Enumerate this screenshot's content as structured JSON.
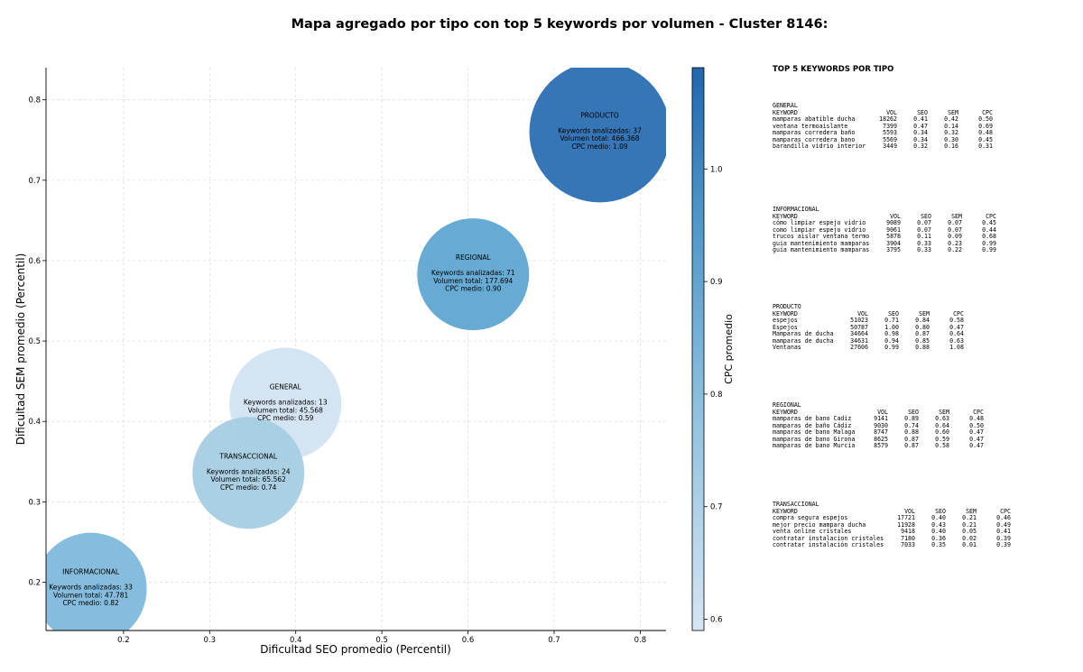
{
  "title": "Mapa agregado por tipo con top 5 keywords por volumen - Cluster 8146:",
  "chart_data": {
    "type": "scatter",
    "title": "Mapa agregado por tipo con top 5 keywords por volumen - Cluster 8146:",
    "xlabel": "Dificultad SEO promedio (Percentil)",
    "ylabel": "Dificultad SEM promedio (Percentil)",
    "xlim": [
      0.11,
      0.83
    ],
    "ylim": [
      0.14,
      0.84
    ],
    "xticks": [
      0.2,
      0.3,
      0.4,
      0.5,
      0.6,
      0.7,
      0.8
    ],
    "yticks": [
      0.2,
      0.3,
      0.4,
      0.5,
      0.6,
      0.7,
      0.8
    ],
    "xtick_labels": [
      "0.2",
      "0.3",
      "0.4",
      "0.5",
      "0.6",
      "0.7",
      "0.8"
    ],
    "ytick_labels": [
      "0.2",
      "0.3",
      "0.4",
      "0.5",
      "0.6",
      "0.7",
      "0.8"
    ],
    "grid": true,
    "colorbar": {
      "label": "CPC promedio",
      "min": 0.59,
      "max": 1.09,
      "ticks": [
        0.6,
        0.7,
        0.8,
        0.9,
        1.0
      ],
      "tick_labels": [
        "0.6",
        "0.7",
        "0.8",
        "0.9",
        "1.0"
      ],
      "color_low": "#d7e5f4",
      "color_high": "#2266ad"
    },
    "points": [
      {
        "name": "PRODUCTO",
        "x": 0.753,
        "y": 0.76,
        "volume": 466368,
        "cpc": 1.09,
        "color": "#2b6fb3",
        "lines": [
          "Keywords analizadas: 37",
          "Volumen total: 466.368",
          "CPC medio: 1.09"
        ]
      },
      {
        "name": "REGIONAL",
        "x": 0.606,
        "y": 0.583,
        "volume": 177694,
        "cpc": 0.9,
        "color": "#5fa6d3",
        "lines": [
          "Keywords analizadas: 71",
          "Volumen total: 177.694",
          "CPC medio: 0.90"
        ]
      },
      {
        "name": "GENERAL",
        "x": 0.388,
        "y": 0.422,
        "volume": 45568,
        "cpc": 0.59,
        "color": "#d3e3f1",
        "lines": [
          "Keywords analizadas: 13",
          "Volumen total: 45.568",
          "CPC medio: 0.59"
        ]
      },
      {
        "name": "TRANSACCIONAL",
        "x": 0.345,
        "y": 0.336,
        "volume": 65562,
        "cpc": 0.74,
        "color": "#a7cde3",
        "lines": [
          "Keywords analizadas: 24",
          "Volumen total: 65.562",
          "CPC medio: 0.74"
        ]
      },
      {
        "name": "INFORMACIONAL",
        "x": 0.162,
        "y": 0.192,
        "volume": 47781,
        "cpc": 0.82,
        "color": "#80b8db",
        "lines": [
          "Keywords analizadas: 33",
          "Volumen total: 47.781",
          "CPC medio: 0.82"
        ]
      }
    ]
  },
  "side_panel": {
    "title": "TOP 5 KEYWORDS POR TIPO",
    "header": {
      "keyword": "KEYWORD",
      "vol": "VOL",
      "seo": "SEO",
      "sem": "SEM",
      "cpc": "CPC"
    },
    "groups": [
      {
        "name": "GENERAL",
        "rows": [
          {
            "keyword": "mamparas abatible ducha",
            "vol": "18262",
            "seo": "0.41",
            "sem": "0.42",
            "cpc": "0.50"
          },
          {
            "keyword": "ventana termoaislante",
            "vol": "7399",
            "seo": "0.47",
            "sem": "0.14",
            "cpc": "0.69"
          },
          {
            "keyword": "mamparas corredera baño",
            "vol": "5593",
            "seo": "0.34",
            "sem": "0.32",
            "cpc": "0.48"
          },
          {
            "keyword": "mamparas corredera bano",
            "vol": "5569",
            "seo": "0.34",
            "sem": "0.30",
            "cpc": "0.45"
          },
          {
            "keyword": "barandilla vidrio interior",
            "vol": "3449",
            "seo": "0.32",
            "sem": "0.16",
            "cpc": "0.31"
          }
        ]
      },
      {
        "name": "INFORMACIONAL",
        "rows": [
          {
            "keyword": "cómo limpiar espejo vidrio",
            "vol": "9089",
            "seo": "0.07",
            "sem": "0.07",
            "cpc": "0.45"
          },
          {
            "keyword": "como limpiar espejo vidrio",
            "vol": "9061",
            "seo": "0.07",
            "sem": "0.07",
            "cpc": "0.44"
          },
          {
            "keyword": "trucos aislar ventana termo",
            "vol": "5878",
            "seo": "0.11",
            "sem": "0.09",
            "cpc": "0.68"
          },
          {
            "keyword": "guia mantenimiento mamparas",
            "vol": "3904",
            "seo": "0.33",
            "sem": "0.23",
            "cpc": "0.99"
          },
          {
            "keyword": "guía mantenimiento mamparas",
            "vol": "3795",
            "seo": "0.33",
            "sem": "0.22",
            "cpc": "0.99"
          }
        ]
      },
      {
        "name": "PRODUCTO",
        "rows": [
          {
            "keyword": "espejos",
            "vol": "51023",
            "seo": "0.71",
            "sem": "0.84",
            "cpc": "0.58"
          },
          {
            "keyword": "Espejos",
            "vol": "50787",
            "seo": "1.00",
            "sem": "0.80",
            "cpc": "0.47"
          },
          {
            "keyword": "Mamparas de ducha",
            "vol": "34664",
            "seo": "0.98",
            "sem": "0.87",
            "cpc": "0.64"
          },
          {
            "keyword": "mamparas de ducha",
            "vol": "34631",
            "seo": "0.94",
            "sem": "0.85",
            "cpc": "0.63"
          },
          {
            "keyword": "Ventanas",
            "vol": "27606",
            "seo": "0.99",
            "sem": "0.88",
            "cpc": "1.08"
          }
        ]
      },
      {
        "name": "REGIONAL",
        "rows": [
          {
            "keyword": "mamparas de bano Cadiz",
            "vol": "9141",
            "seo": "0.89",
            "sem": "0.63",
            "cpc": "0.48"
          },
          {
            "keyword": "mamparas de baño Cádiz",
            "vol": "9030",
            "seo": "0.74",
            "sem": "0.64",
            "cpc": "0.50"
          },
          {
            "keyword": "mamparas de bano Malaga",
            "vol": "8747",
            "seo": "0.88",
            "sem": "0.60",
            "cpc": "0.47"
          },
          {
            "keyword": "mamparas de bano Girona",
            "vol": "8625",
            "seo": "0.87",
            "sem": "0.59",
            "cpc": "0.47"
          },
          {
            "keyword": "mamparas de bano Murcia",
            "vol": "8579",
            "seo": "0.87",
            "sem": "0.58",
            "cpc": "0.47"
          }
        ]
      },
      {
        "name": "TRANSACCIONAL",
        "rows": [
          {
            "keyword": "compra segura espejos",
            "vol": "17721",
            "seo": "0.40",
            "sem": "0.21",
            "cpc": "0.46"
          },
          {
            "keyword": "mejor precio mampara ducha",
            "vol": "11928",
            "seo": "0.43",
            "sem": "0.21",
            "cpc": "0.49"
          },
          {
            "keyword": "venta online cristales",
            "vol": "9418",
            "seo": "0.40",
            "sem": "0.05",
            "cpc": "0.41"
          },
          {
            "keyword": "contratar instalacion cristales",
            "vol": "7180",
            "seo": "0.36",
            "sem": "0.02",
            "cpc": "0.39"
          },
          {
            "keyword": "contratar instalación cristales",
            "vol": "7033",
            "seo": "0.35",
            "sem": "0.01",
            "cpc": "0.39"
          }
        ]
      }
    ]
  }
}
